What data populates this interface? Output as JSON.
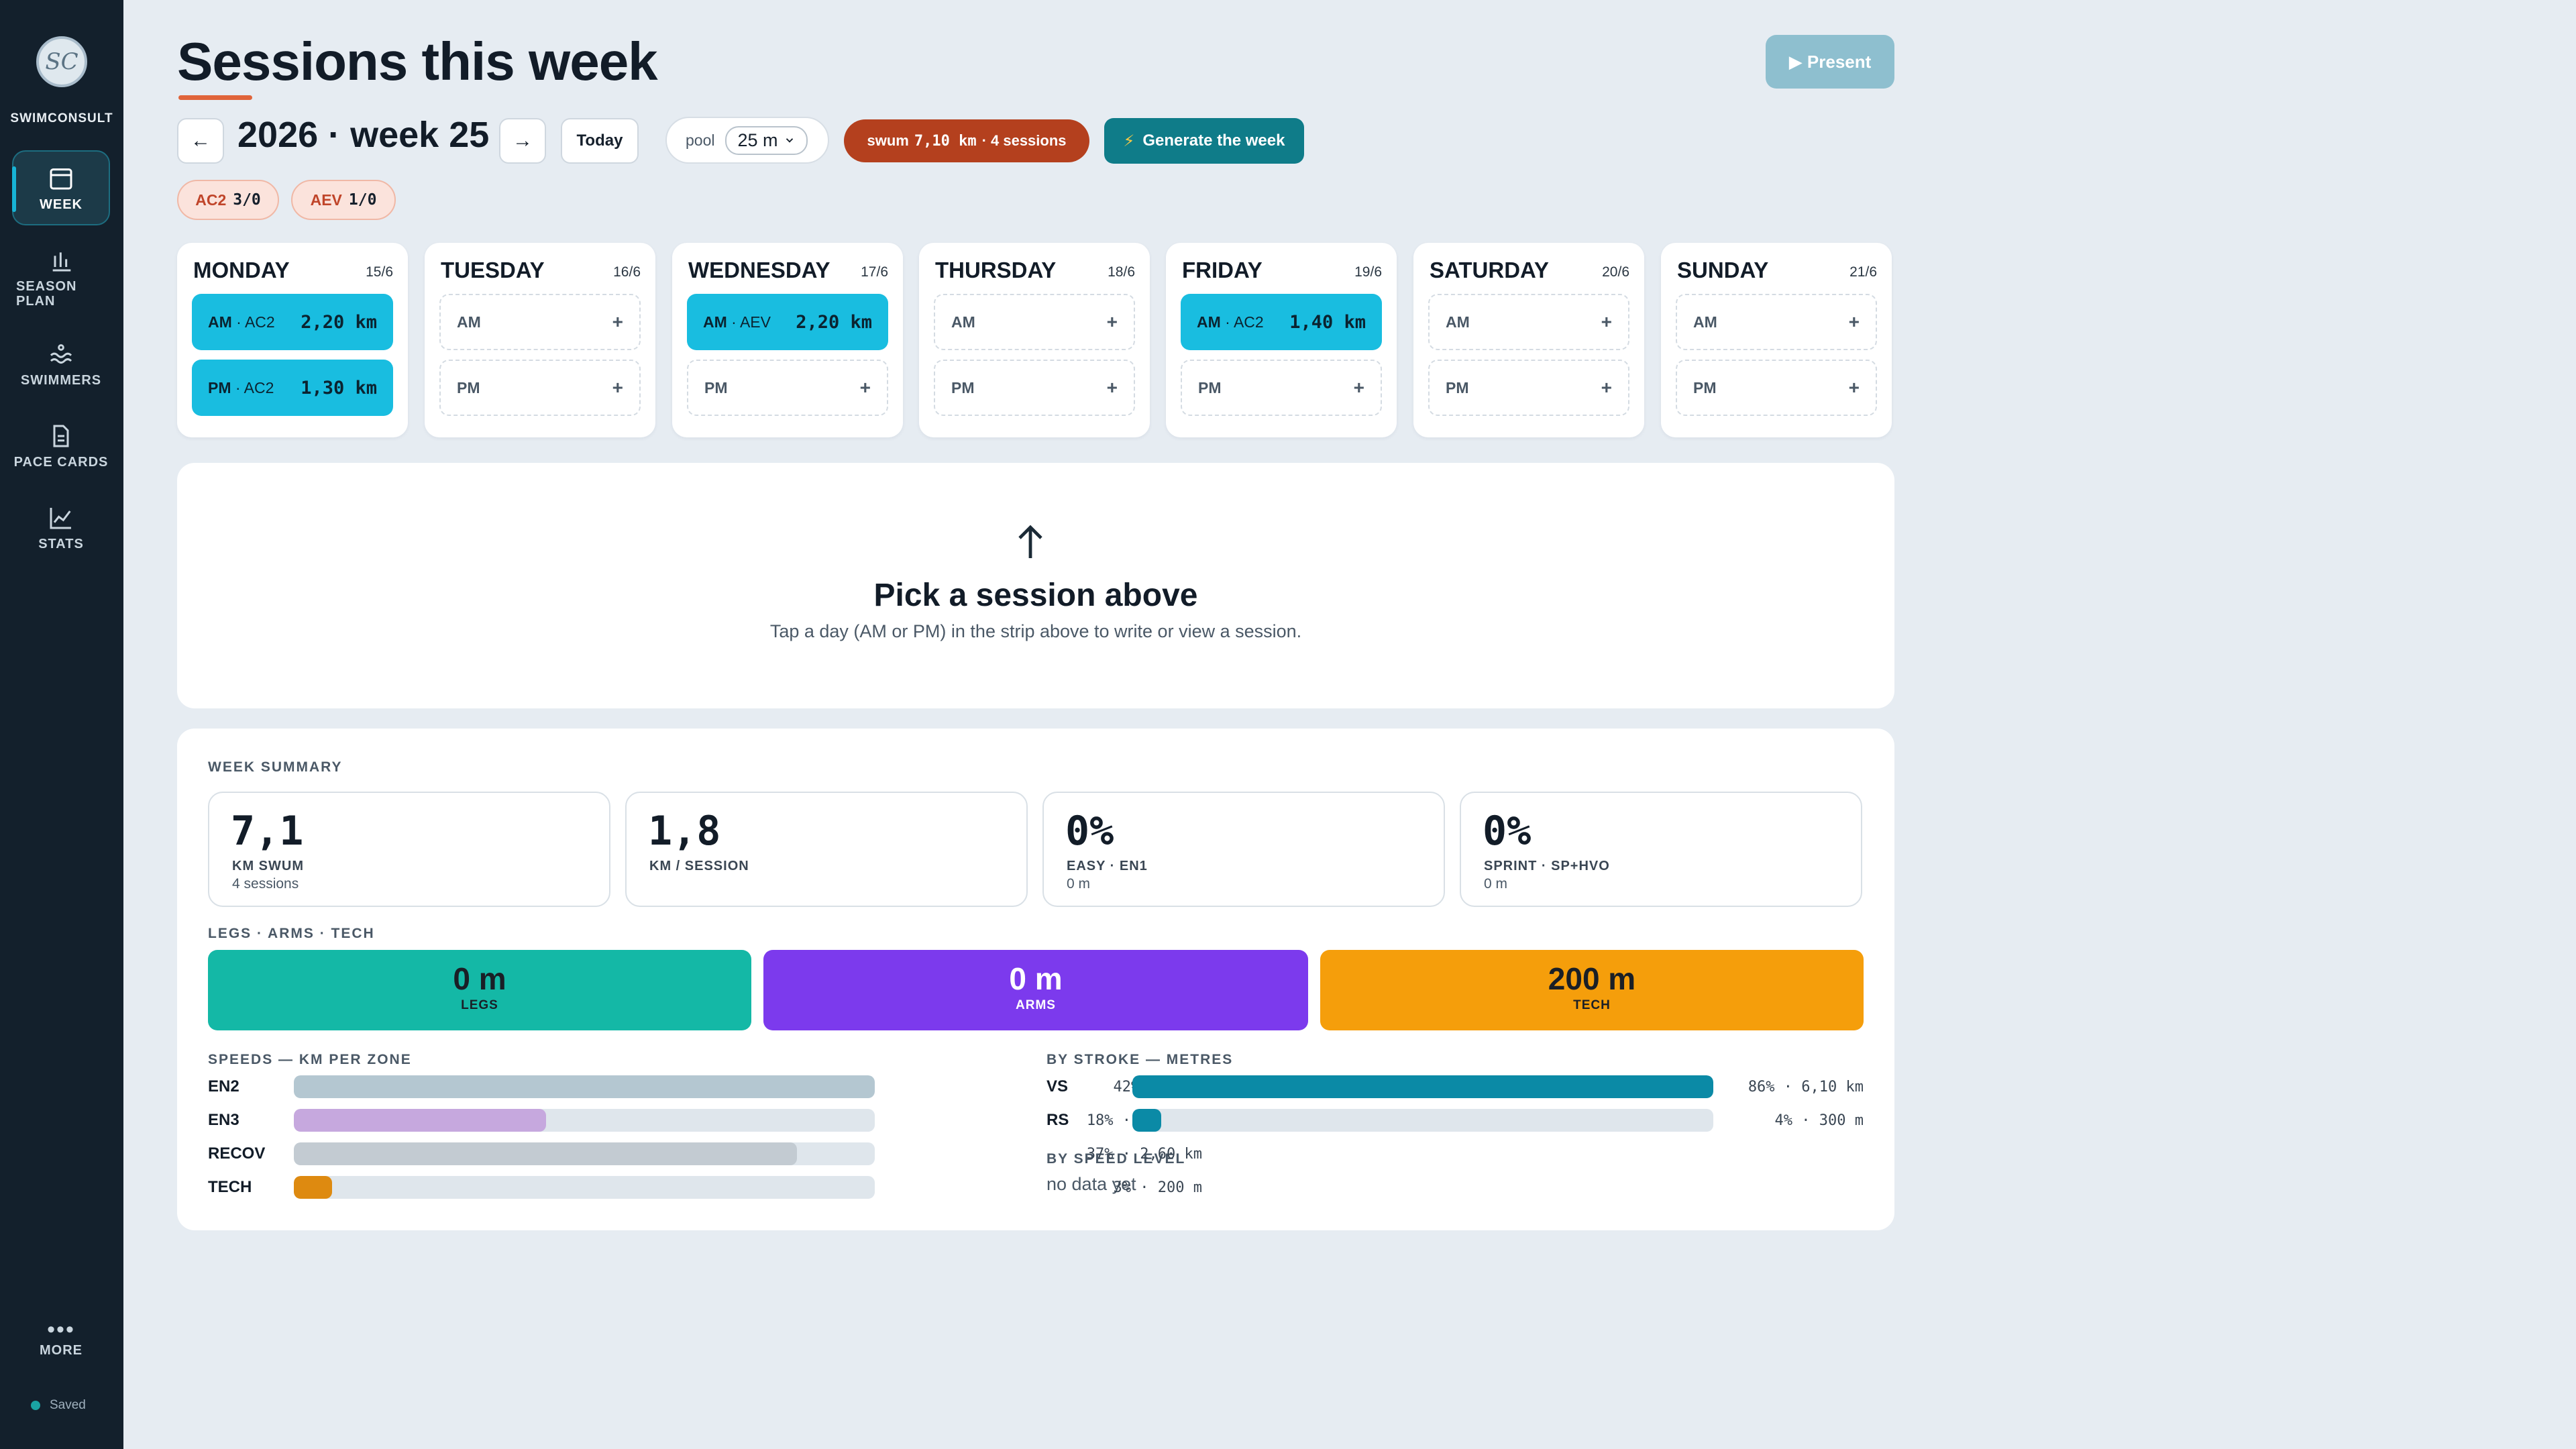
{
  "sidebar": {
    "logo_text": "SC",
    "brand": "SWIMCONSULT",
    "items": [
      {
        "label": "WEEK",
        "icon": "calendar-icon",
        "active": true
      },
      {
        "label": "SEASON PLAN",
        "icon": "bar-chart-icon"
      },
      {
        "label": "SWIMMERS",
        "icon": "waves-icon"
      },
      {
        "label": "PACE CARDS",
        "icon": "document-icon"
      },
      {
        "label": "STATS",
        "icon": "line-chart-icon"
      }
    ],
    "more_label": "MORE",
    "saved_label": "Saved"
  },
  "header": {
    "title": "Sessions this week",
    "present_label": "▶ Present",
    "prev_arrow": "←",
    "next_arrow": "→",
    "week_label": "2026 · week 25",
    "today_label": "Today",
    "pool_label": "pool",
    "pool_value": "25 m",
    "swum_label": "swum",
    "swum_km": "7,10 km",
    "swum_sessions": "· 4 sessions",
    "generate_label": "Generate the week",
    "generate_icon": "⚡",
    "chips": [
      {
        "key": "AC2",
        "value": "3/0"
      },
      {
        "key": "AEV",
        "value": "1/0"
      }
    ]
  },
  "days": [
    {
      "name": "MONDAY",
      "date": "15/6",
      "am": {
        "prefix": "AM",
        "cat": "AC2",
        "km": "2,20 km"
      },
      "pm": {
        "prefix": "PM",
        "cat": "AC2",
        "km": "1,30 km"
      }
    },
    {
      "name": "TUESDAY",
      "date": "16/6",
      "am": {
        "prefix": "AM"
      },
      "pm": {
        "prefix": "PM"
      }
    },
    {
      "name": "WEDNESDAY",
      "date": "17/6",
      "am": {
        "prefix": "AM",
        "cat": "AEV",
        "km": "2,20 km"
      },
      "pm": {
        "prefix": "PM"
      }
    },
    {
      "name": "THURSDAY",
      "date": "18/6",
      "am": {
        "prefix": "AM"
      },
      "pm": {
        "prefix": "PM"
      }
    },
    {
      "name": "FRIDAY",
      "date": "19/6",
      "am": {
        "prefix": "AM",
        "cat": "AC2",
        "km": "1,40 km"
      },
      "pm": {
        "prefix": "PM"
      }
    },
    {
      "name": "SATURDAY",
      "date": "20/6",
      "am": {
        "prefix": "AM"
      },
      "pm": {
        "prefix": "PM"
      }
    },
    {
      "name": "SUNDAY",
      "date": "21/6",
      "am": {
        "prefix": "AM"
      },
      "pm": {
        "prefix": "PM"
      }
    }
  ],
  "add_symbol": "+",
  "pick": {
    "arrow": "↑",
    "title": "Pick a session above",
    "subtitle": "Tap a day (AM or PM) in the strip above to write or view a session."
  },
  "summary": {
    "label": "WEEK SUMMARY",
    "stats": [
      {
        "value": "7,1",
        "label": "KM SWUM",
        "sub": "4 sessions"
      },
      {
        "value": "1,8",
        "label": "KM / SESSION",
        "sub": ""
      },
      {
        "value": "0%",
        "label": "EASY · EN1",
        "sub": "0 m"
      },
      {
        "value": "0%",
        "label": "SPRINT · SP+HVO",
        "sub": "0 m"
      }
    ],
    "lat_label": "LEGS · ARMS · TECH",
    "lat": [
      {
        "value": "0 m",
        "label": "LEGS",
        "color": "#14b8a6"
      },
      {
        "value": "0 m",
        "label": "ARMS",
        "color": "#7c3aed"
      },
      {
        "value": "200 m",
        "label": "TECH",
        "color": "#f59e0b"
      }
    ],
    "speeds_label": "SPEEDS — KM PER ZONE",
    "speeds": [
      {
        "name": "EN2",
        "fraction": 1.0,
        "value": "42% · 3 km",
        "color": "#b4c7d1"
      },
      {
        "name": "EN3",
        "fraction": 0.434,
        "value": "18% · 1,30 km",
        "color": "#c6a8de"
      },
      {
        "name": "RECOV",
        "fraction": 0.866,
        "value": "37% · 2,60 km",
        "color": "#c3cbd2"
      },
      {
        "name": "TECH",
        "fraction": 0.066,
        "value": "3% · 200 m",
        "color": "#de8a10"
      }
    ],
    "stroke_label": "BY STROKE — METRES",
    "strokes": [
      {
        "name": "VS",
        "fraction": 1.0,
        "value": "86% · 6,10 km",
        "color": "#0b8aa6"
      },
      {
        "name": "RS",
        "fraction": 0.05,
        "value": "4% · 300 m",
        "color": "#0b8aa6"
      }
    ],
    "speed_level_label": "BY SPEED LEVEL",
    "speed_level_value": "no data yet"
  }
}
